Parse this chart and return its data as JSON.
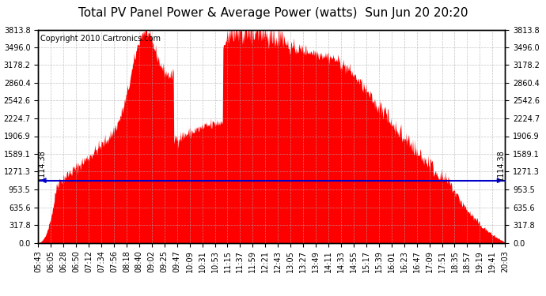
{
  "title": "Total PV Panel Power & Average Power (watts)  Sun Jun 20 20:20",
  "copyright": "Copyright 2010 Cartronics.com",
  "avg_power": 1114.38,
  "y_max": 3813.8,
  "y_ticks": [
    0.0,
    317.8,
    635.6,
    953.5,
    1271.3,
    1589.1,
    1906.9,
    2224.7,
    2542.6,
    2860.4,
    3178.2,
    3496.0,
    3813.8
  ],
  "fill_color": "#FF0000",
  "avg_line_color": "#0000CC",
  "background_color": "#FFFFFF",
  "grid_color": "#AAAAAA",
  "x_labels": [
    "05:43",
    "06:05",
    "06:28",
    "06:50",
    "07:12",
    "07:34",
    "07:56",
    "08:18",
    "08:40",
    "09:02",
    "09:25",
    "09:47",
    "10:09",
    "10:31",
    "10:53",
    "11:15",
    "11:37",
    "11:59",
    "12:21",
    "12:43",
    "13:05",
    "13:27",
    "13:49",
    "14:11",
    "14:33",
    "14:55",
    "15:17",
    "15:39",
    "16:01",
    "16:23",
    "16:47",
    "17:09",
    "17:51",
    "18:35",
    "18:57",
    "19:19",
    "19:41",
    "20:03"
  ],
  "title_fontsize": 11,
  "tick_fontsize": 7,
  "copyright_fontsize": 7,
  "avg_label_fontsize": 7
}
